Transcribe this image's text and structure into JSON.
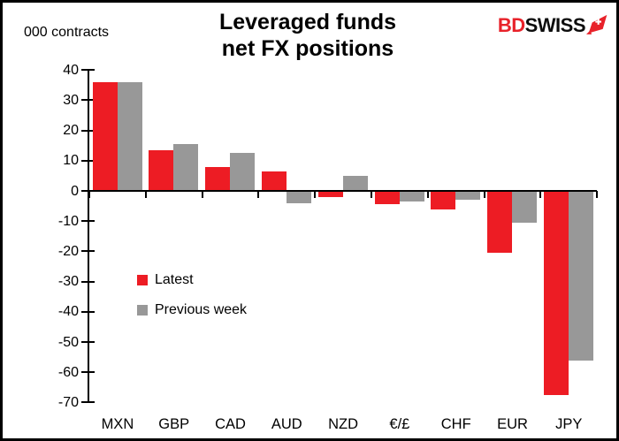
{
  "header": {
    "units_label": "000 contracts",
    "title_line1": "Leveraged funds",
    "title_line2": "net FX positions",
    "logo": {
      "part1": "BD",
      "part2": "SWISS",
      "part1_color": "#e8222a",
      "part2_color": "#0d0d0d",
      "flag_icon": "swiss-flag-arrow-icon"
    }
  },
  "chart_data": {
    "type": "bar",
    "title": "Leveraged funds net FX positions",
    "ylabel": "000 contracts",
    "categories": [
      "MXN",
      "GBP",
      "CAD",
      "AUD",
      "NZD",
      "€/£",
      "CHF",
      "EUR",
      "JPY"
    ],
    "series": [
      {
        "name": "Latest",
        "color": "#ed1c24",
        "values": [
          36,
          13.5,
          8,
          6.5,
          -2,
          -4.5,
          -6,
          -20.5,
          -67.5
        ]
      },
      {
        "name": "Previous week",
        "color": "#989898",
        "values": [
          36,
          15.5,
          12.5,
          -4,
          5,
          -3.5,
          -3,
          -10.5,
          -56
        ]
      }
    ],
    "ylim": [
      -70,
      40
    ],
    "ytick_step": 10,
    "yticks": [
      40,
      30,
      20,
      10,
      0,
      -10,
      -20,
      -30,
      -40,
      -50,
      -60,
      -70
    ],
    "grid": false,
    "legend_position": "inside-left-middle"
  },
  "legend": {
    "items": [
      {
        "label": "Latest",
        "color": "#ed1c24"
      },
      {
        "label": "Previous week",
        "color": "#989898"
      }
    ]
  }
}
